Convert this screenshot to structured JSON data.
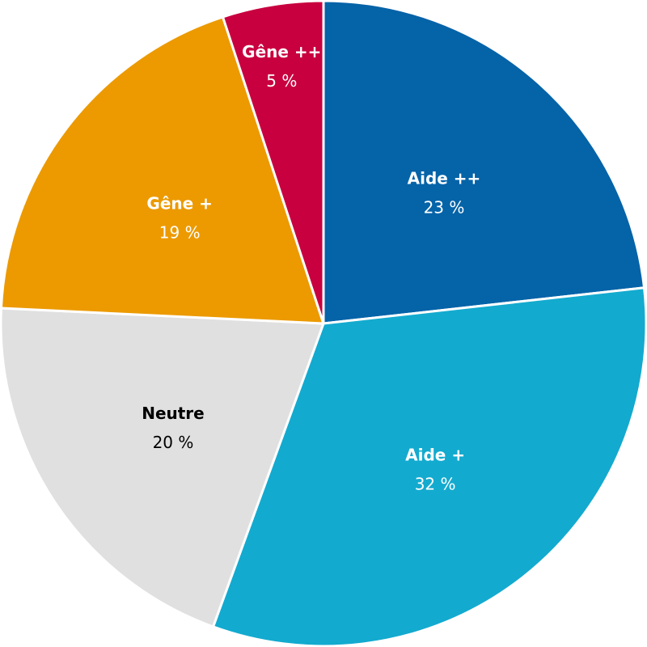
{
  "chart_data": {
    "type": "pie",
    "start": "top",
    "direction": "clockwise",
    "slices": [
      {
        "label": "Aide ++",
        "value": 23,
        "value_text": "23 %",
        "color": "#0563A8",
        "text_color": "#ffffff"
      },
      {
        "label": "Aide +",
        "value": 32,
        "value_text": "32 %",
        "color": "#13AACF",
        "text_color": "#ffffff"
      },
      {
        "label": "Neutre",
        "value": 20,
        "value_text": "20 %",
        "color": "#E0E0E0",
        "text_color": "#000000"
      },
      {
        "label": "Gêne +",
        "value": 19,
        "value_text": "19 %",
        "color": "#EC9A00",
        "text_color": "#ffffff"
      },
      {
        "label": "Gêne ++",
        "value": 5,
        "value_text": "5 %",
        "color": "#C8003F",
        "text_color": "#ffffff"
      }
    ]
  }
}
